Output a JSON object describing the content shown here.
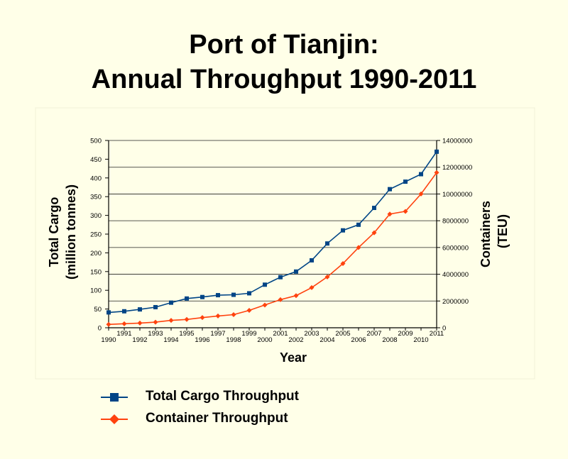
{
  "title_line1": "Port of Tianjin:",
  "title_line2": "Annual Throughput 1990-2011",
  "chart_data": {
    "type": "line",
    "title": "Port of Tianjin: Annual Throughput 1990-2011",
    "xlabel": "Year",
    "ylabel_left_line1": "Total Cargo",
    "ylabel_left_line2": "(million tonnes)",
    "ylabel_right_line1": "Containers",
    "ylabel_right_line2": "(TEU)",
    "x": [
      "1990",
      "1991",
      "1992",
      "1993",
      "1994",
      "1995",
      "1996",
      "1997",
      "1998",
      "1999",
      "2000",
      "2001",
      "2002",
      "2003",
      "2004",
      "2005",
      "2006",
      "2007",
      "2008",
      "2009",
      "2010",
      "2011"
    ],
    "y_left_ticks": [
      "0",
      "50",
      "100",
      "150",
      "200",
      "250",
      "300",
      "350",
      "400",
      "450",
      "500"
    ],
    "y_right_ticks": [
      "0",
      "2000000",
      "4000000",
      "6000000",
      "8000000",
      "10000000",
      "12000000",
      "14000000"
    ],
    "ylim_left": [
      0,
      500
    ],
    "ylim_right": [
      0,
      14000000
    ],
    "grid": "horizontal",
    "legend_position": "bottom",
    "series": [
      {
        "name": "Total Cargo Throughput",
        "axis": "left",
        "color": "#004586",
        "marker": "square",
        "values": [
          41,
          44,
          49,
          55,
          67,
          78,
          82,
          87,
          88,
          92,
          115,
          135,
          150,
          180,
          225,
          260,
          275,
          320,
          370,
          390,
          410,
          470
        ]
      },
      {
        "name": "Container Throughput",
        "axis": "right",
        "color": "#ff420e",
        "marker": "diamond",
        "values": [
          250000,
          300000,
          350000,
          420000,
          550000,
          620000,
          760000,
          880000,
          980000,
          1300000,
          1700000,
          2100000,
          2400000,
          3000000,
          3800000,
          4800000,
          6000000,
          7100000,
          8500000,
          8700000,
          10000000,
          11600000
        ]
      }
    ]
  }
}
